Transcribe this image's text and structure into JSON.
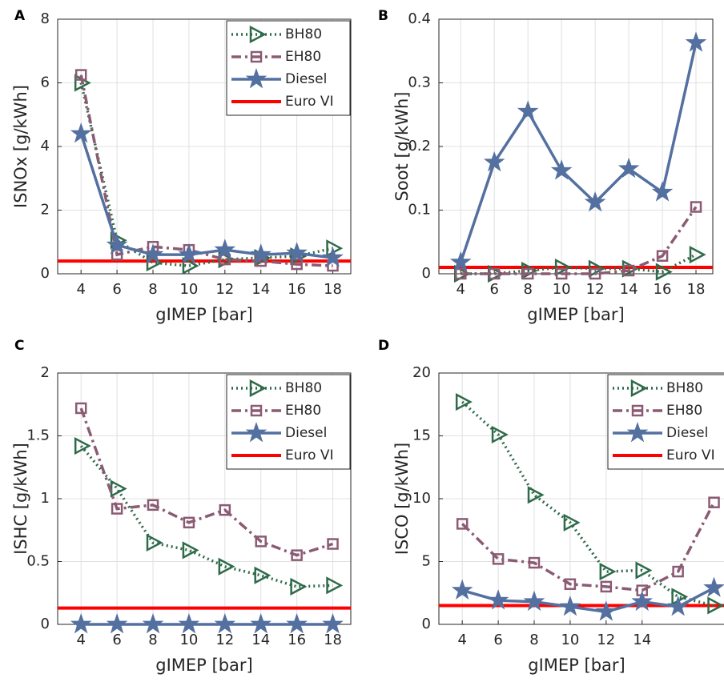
{
  "chart_data": [
    {
      "type": "line",
      "panel": "A",
      "xlabel": "gIMEP [bar]",
      "ylabel": "ISNOx [g/kWh]",
      "x": [
        4,
        6,
        8,
        10,
        12,
        14,
        16,
        18
      ],
      "xlim": [
        2.7,
        19
      ],
      "xticks": [
        4,
        6,
        8,
        10,
        12,
        14,
        16,
        18
      ],
      "ylim": [
        0,
        8
      ],
      "yticks": [
        0,
        2,
        4,
        6,
        8
      ],
      "grid": true,
      "legend": "northeast",
      "series": [
        {
          "name": "BH80",
          "color": "#2f6b4a",
          "marker": "triangle",
          "dash": "dotted",
          "values": [
            6.0,
            1.05,
            0.35,
            0.25,
            0.45,
            0.5,
            0.55,
            0.8
          ]
        },
        {
          "name": "EH80",
          "color": "#8b5b73",
          "marker": "square",
          "dash": "dashdot",
          "values": [
            6.25,
            0.6,
            0.85,
            0.75,
            0.45,
            0.4,
            0.3,
            0.25
          ]
        },
        {
          "name": "Diesel",
          "color": "#5470a0",
          "marker": "star",
          "dash": "solid",
          "values": [
            4.4,
            0.9,
            0.6,
            0.6,
            0.75,
            0.6,
            0.65,
            0.5
          ]
        }
      ],
      "reference": {
        "name": "Euro VI",
        "color": "#ff0000",
        "value": 0.4
      }
    },
    {
      "type": "line",
      "panel": "B",
      "xlabel": "gIMEP [bar]",
      "ylabel": "Soot [g/kWh]",
      "x": [
        4,
        6,
        8,
        10,
        12,
        14,
        16,
        18
      ],
      "xlim": [
        2.7,
        19
      ],
      "xticks": [
        4,
        6,
        8,
        10,
        12,
        14,
        16,
        18
      ],
      "ylim": [
        0,
        0.4
      ],
      "yticks": [
        0,
        0.1,
        0.2,
        0.3,
        0.4
      ],
      "grid": true,
      "series": [
        {
          "name": "BH80",
          "color": "#2f6b4a",
          "marker": "triangle",
          "dash": "dotted",
          "values": [
            0,
            0,
            0.005,
            0.01,
            0.008,
            0.008,
            0.003,
            0.03
          ]
        },
        {
          "name": "EH80",
          "color": "#8b5b73",
          "marker": "square",
          "dash": "dashdot",
          "values": [
            0,
            0,
            0,
            0,
            0,
            0.005,
            0.028,
            0.105
          ]
        },
        {
          "name": "Diesel",
          "color": "#5470a0",
          "marker": "star",
          "dash": "solid",
          "values": [
            0.018,
            0.175,
            0.255,
            0.162,
            0.112,
            0.165,
            0.128,
            0.363
          ]
        }
      ],
      "reference": {
        "name": "Euro VI",
        "color": "#ff0000",
        "value": 0.01
      }
    },
    {
      "type": "line",
      "panel": "C",
      "xlabel": "gIMEP [bar]",
      "ylabel": "ISHC [g/kWh]",
      "x": [
        4,
        6,
        8,
        10,
        12,
        14,
        16,
        18
      ],
      "xlim": [
        2.7,
        19
      ],
      "xticks": [
        4,
        6,
        8,
        10,
        12,
        14,
        16,
        18
      ],
      "ylim": [
        0,
        2
      ],
      "yticks": [
        0,
        0.5,
        1,
        1.5,
        2
      ],
      "grid": true,
      "legend": "northeast",
      "series": [
        {
          "name": "BH80",
          "color": "#2f6b4a",
          "marker": "triangle",
          "dash": "dotted",
          "values": [
            1.42,
            1.08,
            0.65,
            0.59,
            0.46,
            0.39,
            0.3,
            0.31
          ]
        },
        {
          "name": "EH80",
          "color": "#8b5b73",
          "marker": "square",
          "dash": "dashdot",
          "values": [
            1.72,
            0.92,
            0.95,
            0.81,
            0.91,
            0.66,
            0.55,
            0.64
          ]
        },
        {
          "name": "Diesel",
          "color": "#5470a0",
          "marker": "star",
          "dash": "solid",
          "values": [
            0,
            0,
            0,
            0,
            0,
            0,
            0,
            0
          ]
        }
      ],
      "reference": {
        "name": "Euro VI",
        "color": "#ff0000",
        "value": 0.13
      }
    },
    {
      "type": "line",
      "panel": "D",
      "xlabel": "gIMEP [bar]",
      "ylabel": "ISCO [g/kWh]",
      "x": [
        4,
        6,
        8,
        10,
        12,
        14,
        16,
        18
      ],
      "xlim": [
        2.7,
        19
      ],
      "xticks": [
        4,
        6,
        8,
        10,
        12,
        14
      ],
      "ylim": [
        0,
        20
      ],
      "yticks": [
        0,
        5,
        10,
        15,
        20
      ],
      "grid": true,
      "legend": "northeast",
      "series": [
        {
          "name": "BH80",
          "color": "#2f6b4a",
          "marker": "triangle",
          "dash": "dotted",
          "values": [
            17.7,
            15.1,
            10.3,
            8.1,
            4.2,
            4.3,
            2.2,
            1.5
          ]
        },
        {
          "name": "EH80",
          "color": "#8b5b73",
          "marker": "square",
          "dash": "dashdot",
          "values": [
            8.0,
            5.2,
            4.9,
            3.2,
            3.0,
            2.7,
            4.2,
            9.7
          ]
        },
        {
          "name": "Diesel",
          "color": "#5470a0",
          "marker": "star",
          "dash": "solid",
          "values": [
            2.7,
            1.9,
            1.8,
            1.4,
            1.0,
            1.8,
            1.4,
            2.9
          ]
        }
      ],
      "reference": {
        "name": "Euro VI",
        "color": "#ff0000",
        "value": 1.5
      }
    }
  ]
}
